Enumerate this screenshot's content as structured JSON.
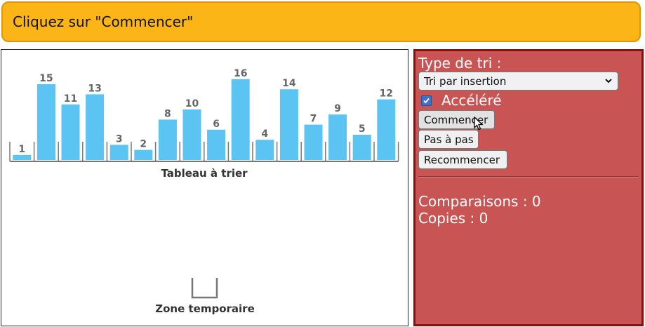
{
  "banner": {
    "text": "Cliquez sur \"Commencer\""
  },
  "array": {
    "values": [
      1,
      15,
      11,
      13,
      3,
      2,
      8,
      10,
      6,
      16,
      4,
      14,
      7,
      9,
      5,
      12
    ],
    "label": "Tableau à trier",
    "bar_color": "#5bc4f2",
    "label_color": "#666666"
  },
  "temp_zone": {
    "label": "Zone temporaire"
  },
  "panel": {
    "sort_type_label": "Type de tri :",
    "sort_select_value": "Tri par insertion",
    "accelerated_label": "Accéléré",
    "accelerated_checked": true,
    "start_button": "Commencer",
    "step_button": "Pas à pas",
    "reset_button": "Recommencer",
    "comparisons_text": "Comparaisons : 0",
    "copies_text": "Copies : 0",
    "background_color": "#c95454"
  }
}
